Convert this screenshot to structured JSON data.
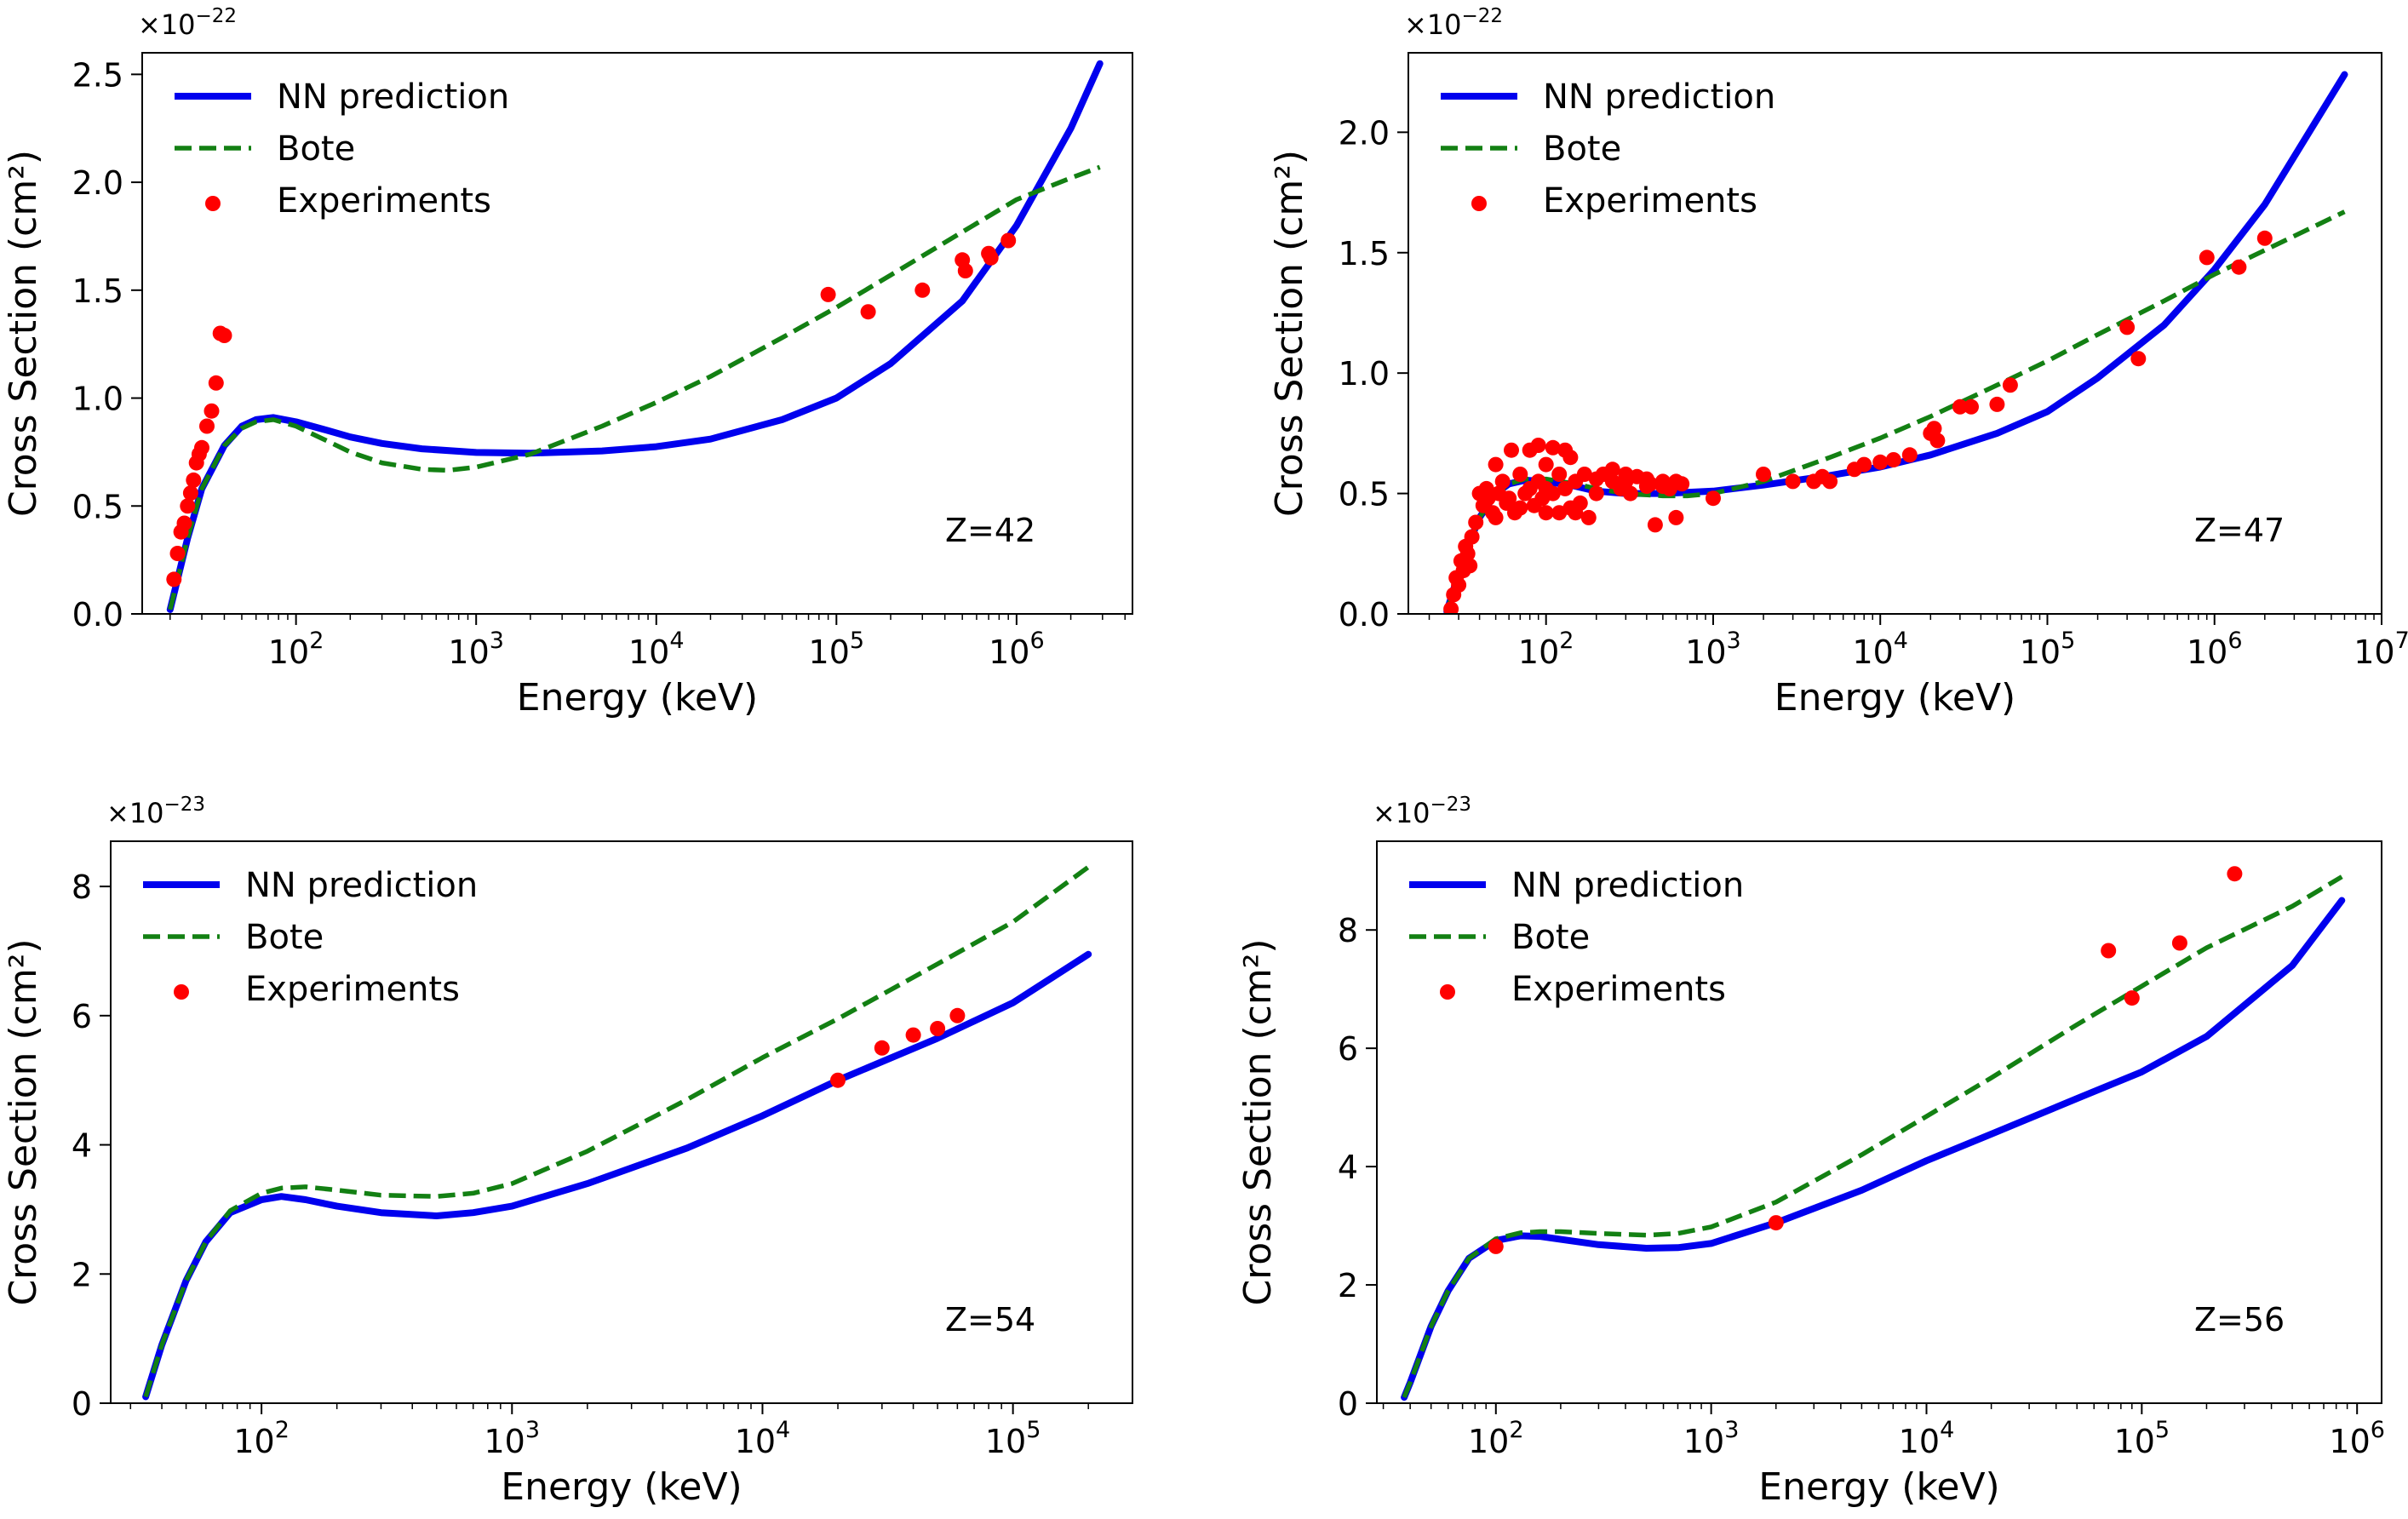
{
  "chart_data": [
    {
      "type": "line",
      "panel": "top-left",
      "title": "",
      "xlabel": "Energy (keV)",
      "ylabel": "Cross Section (cm²)",
      "xscale": "log",
      "xlim": [
        14,
        4400000
      ],
      "ylim": [
        0,
        2.6
      ],
      "x_ticks": [
        100,
        1000,
        10000,
        100000,
        1000000
      ],
      "x_tick_labels": [
        {
          "base": "10",
          "exp": "2"
        },
        {
          "base": "10",
          "exp": "3"
        },
        {
          "base": "10",
          "exp": "4"
        },
        {
          "base": "10",
          "exp": "5"
        },
        {
          "base": "10",
          "exp": "6"
        }
      ],
      "y_ticks": [
        0,
        0.5,
        1.0,
        1.5,
        2.0,
        2.5
      ],
      "y_tick_labels": [
        "0.0",
        "0.5",
        "1.0",
        "1.5",
        "2.0",
        "2.5"
      ],
      "offset_text": {
        "prefix": "×10",
        "exp": "−22"
      },
      "annotation": "Z=42",
      "legend": {
        "position": "top-left",
        "entries": [
          "NN prediction",
          "Bote",
          "Experiments"
        ]
      },
      "series": [
        {
          "name": "NN prediction",
          "style": "solid",
          "color": "#0000ee",
          "x": [
            20,
            25,
            30,
            40,
            50,
            60,
            75,
            100,
            150,
            200,
            300,
            500,
            1000,
            2000,
            5000,
            10000,
            20000,
            50000,
            100000,
            200000,
            500000,
            1000000,
            2000000,
            2900000
          ],
          "y": [
            0.02,
            0.35,
            0.58,
            0.78,
            0.87,
            0.9,
            0.91,
            0.89,
            0.85,
            0.82,
            0.79,
            0.765,
            0.748,
            0.745,
            0.755,
            0.775,
            0.81,
            0.9,
            1.0,
            1.16,
            1.45,
            1.8,
            2.25,
            2.55
          ]
        },
        {
          "name": "Bote",
          "style": "dashed",
          "color": "#138013",
          "x": [
            20,
            25,
            30,
            40,
            50,
            60,
            75,
            100,
            150,
            200,
            300,
            500,
            700,
            1000,
            2000,
            5000,
            10000,
            20000,
            50000,
            100000,
            200000,
            500000,
            1000000,
            2000000,
            2900000
          ],
          "y": [
            0.02,
            0.35,
            0.58,
            0.78,
            0.86,
            0.89,
            0.9,
            0.87,
            0.8,
            0.75,
            0.7,
            0.67,
            0.665,
            0.68,
            0.74,
            0.87,
            0.98,
            1.1,
            1.28,
            1.42,
            1.57,
            1.77,
            1.92,
            2.02,
            2.07
          ]
        },
        {
          "name": "Experiments",
          "style": "markers",
          "color": "#ff0000",
          "x": [
            21,
            22,
            23,
            24,
            25,
            26,
            27,
            28,
            29,
            30,
            32,
            34,
            36,
            38,
            40,
            90000,
            150000,
            300000,
            500000,
            520000,
            700000,
            720000,
            900000
          ],
          "y": [
            0.16,
            0.28,
            0.38,
            0.42,
            0.5,
            0.56,
            0.62,
            0.7,
            0.74,
            0.77,
            0.87,
            0.94,
            1.07,
            1.3,
            1.29,
            1.48,
            1.4,
            1.5,
            1.64,
            1.59,
            1.67,
            1.65,
            1.73
          ]
        }
      ]
    },
    {
      "type": "line",
      "panel": "top-right",
      "title": "",
      "xlabel": "Energy (keV)",
      "ylabel": "Cross Section (cm²)",
      "xscale": "log",
      "xlim": [
        15,
        10000000
      ],
      "ylim": [
        0,
        2.33
      ],
      "x_ticks": [
        100,
        1000,
        10000,
        100000,
        1000000,
        10000000
      ],
      "x_tick_labels": [
        {
          "base": "10",
          "exp": "2"
        },
        {
          "base": "10",
          "exp": "3"
        },
        {
          "base": "10",
          "exp": "4"
        },
        {
          "base": "10",
          "exp": "5"
        },
        {
          "base": "10",
          "exp": "6"
        },
        {
          "base": "10",
          "exp": "7"
        }
      ],
      "y_ticks": [
        0,
        0.5,
        1.0,
        1.5,
        2.0
      ],
      "y_tick_labels": [
        "0.0",
        "0.5",
        "1.0",
        "1.5",
        "2.0"
      ],
      "offset_text": {
        "prefix": "×10",
        "exp": "−22"
      },
      "annotation": "Z=47",
      "legend": {
        "position": "top-left",
        "entries": [
          "NN prediction",
          "Bote",
          "Experiments"
        ]
      },
      "series": [
        {
          "name": "NN prediction",
          "style": "solid",
          "color": "#0000ee",
          "x": [
            25.5,
            30,
            35,
            40,
            50,
            60,
            75,
            100,
            150,
            200,
            300,
            500,
            700,
            1000,
            2000,
            5000,
            10000,
            20000,
            50000,
            100000,
            200000,
            500000,
            1000000,
            2000000,
            6000000
          ],
          "y": [
            0.01,
            0.17,
            0.3,
            0.4,
            0.5,
            0.54,
            0.555,
            0.55,
            0.53,
            0.51,
            0.5,
            0.5,
            0.505,
            0.51,
            0.535,
            0.575,
            0.61,
            0.66,
            0.75,
            0.84,
            0.98,
            1.2,
            1.43,
            1.7,
            2.24
          ]
        },
        {
          "name": "Bote",
          "style": "dashed",
          "color": "#138013",
          "x": [
            25.5,
            30,
            35,
            40,
            50,
            60,
            75,
            100,
            150,
            200,
            300,
            500,
            700,
            1000,
            2000,
            5000,
            10000,
            20000,
            50000,
            100000,
            200000,
            500000,
            1000000,
            2000000,
            6000000
          ],
          "y": [
            0.01,
            0.17,
            0.3,
            0.4,
            0.5,
            0.54,
            0.56,
            0.56,
            0.54,
            0.52,
            0.5,
            0.49,
            0.49,
            0.5,
            0.55,
            0.65,
            0.73,
            0.82,
            0.95,
            1.05,
            1.16,
            1.3,
            1.41,
            1.51,
            1.67
          ]
        },
        {
          "name": "Experiments",
          "style": "markers",
          "color": "#ff0000",
          "x": [
            27,
            28,
            29,
            30,
            31,
            32,
            33,
            34,
            35,
            36,
            38,
            40,
            42,
            44,
            45,
            48,
            50,
            50,
            52,
            55,
            58,
            60,
            62,
            65,
            70,
            70,
            75,
            80,
            80,
            85,
            90,
            90,
            95,
            100,
            100,
            100,
            110,
            110,
            120,
            120,
            130,
            130,
            140,
            140,
            150,
            150,
            160,
            170,
            180,
            200,
            200,
            220,
            250,
            250,
            280,
            300,
            300,
            320,
            350,
            400,
            400,
            420,
            450,
            500,
            500,
            550,
            600,
            600,
            650,
            1000,
            2000,
            3000,
            4000,
            4500,
            5000,
            7000,
            8000,
            10000,
            12000,
            15000,
            20000,
            21000,
            22000,
            30000,
            35000,
            50000,
            60000,
            300000,
            350000,
            900000,
            1400000,
            2000000
          ],
          "y": [
            0.02,
            0.08,
            0.15,
            0.12,
            0.22,
            0.18,
            0.28,
            0.25,
            0.2,
            0.32,
            0.38,
            0.5,
            0.45,
            0.52,
            0.48,
            0.42,
            0.62,
            0.4,
            0.5,
            0.55,
            0.46,
            0.48,
            0.68,
            0.42,
            0.58,
            0.44,
            0.5,
            0.68,
            0.52,
            0.45,
            0.7,
            0.55,
            0.48,
            0.62,
            0.52,
            0.42,
            0.69,
            0.5,
            0.58,
            0.42,
            0.68,
            0.52,
            0.65,
            0.44,
            0.55,
            0.42,
            0.46,
            0.58,
            0.4,
            0.5,
            0.56,
            0.58,
            0.55,
            0.6,
            0.52,
            0.58,
            0.55,
            0.5,
            0.57,
            0.53,
            0.56,
            0.54,
            0.37,
            0.55,
            0.53,
            0.52,
            0.4,
            0.55,
            0.54,
            0.48,
            0.58,
            0.55,
            0.55,
            0.57,
            0.55,
            0.6,
            0.62,
            0.63,
            0.64,
            0.66,
            0.75,
            0.77,
            0.72,
            0.86,
            0.86,
            0.87,
            0.95,
            1.19,
            1.06,
            1.48,
            1.44,
            1.56
          ]
        }
      ]
    },
    {
      "type": "line",
      "panel": "bottom-left",
      "title": "",
      "xlabel": "Energy (keV)",
      "ylabel": "Cross Section (cm²)",
      "xscale": "log",
      "xlim": [
        25,
        300000
      ],
      "ylim": [
        0,
        8.7
      ],
      "x_ticks": [
        100,
        1000,
        10000,
        100000
      ],
      "x_tick_labels": [
        {
          "base": "10",
          "exp": "2"
        },
        {
          "base": "10",
          "exp": "3"
        },
        {
          "base": "10",
          "exp": "4"
        },
        {
          "base": "10",
          "exp": "5"
        }
      ],
      "y_ticks": [
        0,
        2,
        4,
        6,
        8
      ],
      "y_tick_labels": [
        "0",
        "2",
        "4",
        "6",
        "8"
      ],
      "offset_text": {
        "prefix": "×10",
        "exp": "−23"
      },
      "annotation": "Z=54",
      "legend": {
        "position": "top-left",
        "entries": [
          "NN prediction",
          "Bote",
          "Experiments"
        ]
      },
      "series": [
        {
          "name": "NN prediction",
          "style": "solid",
          "color": "#0000ee",
          "x": [
            34.5,
            40,
            50,
            60,
            75,
            100,
            120,
            150,
            200,
            300,
            500,
            700,
            1000,
            2000,
            5000,
            10000,
            20000,
            50000,
            100000,
            200000
          ],
          "y": [
            0.1,
            0.9,
            1.9,
            2.5,
            2.95,
            3.15,
            3.2,
            3.15,
            3.05,
            2.95,
            2.9,
            2.95,
            3.05,
            3.4,
            3.95,
            4.45,
            5.0,
            5.65,
            6.2,
            6.95
          ]
        },
        {
          "name": "Bote",
          "style": "dashed",
          "color": "#138013",
          "x": [
            34.5,
            40,
            50,
            60,
            75,
            100,
            120,
            150,
            200,
            300,
            500,
            700,
            1000,
            2000,
            5000,
            10000,
            20000,
            50000,
            100000,
            200000
          ],
          "y": [
            0.1,
            0.9,
            1.9,
            2.5,
            2.98,
            3.25,
            3.33,
            3.35,
            3.3,
            3.22,
            3.2,
            3.25,
            3.4,
            3.9,
            4.7,
            5.35,
            5.95,
            6.8,
            7.45,
            8.3
          ]
        },
        {
          "name": "Experiments",
          "style": "markers",
          "color": "#ff0000",
          "x": [
            20000,
            30000,
            40000,
            50000,
            60000
          ],
          "y": [
            5.0,
            5.5,
            5.7,
            5.8,
            6.0
          ]
        }
      ]
    },
    {
      "type": "line",
      "panel": "bottom-right",
      "title": "",
      "xlabel": "Energy (keV)",
      "ylabel": "Cross Section (cm²)",
      "xscale": "log",
      "xlim": [
        28,
        1300000
      ],
      "ylim": [
        0,
        9.5
      ],
      "x_ticks": [
        100,
        1000,
        10000,
        100000,
        1000000
      ],
      "x_tick_labels": [
        {
          "base": "10",
          "exp": "2"
        },
        {
          "base": "10",
          "exp": "3"
        },
        {
          "base": "10",
          "exp": "4"
        },
        {
          "base": "10",
          "exp": "5"
        },
        {
          "base": "10",
          "exp": "6"
        }
      ],
      "y_ticks": [
        0,
        2,
        4,
        6,
        8
      ],
      "y_tick_labels": [
        "0",
        "2",
        "4",
        "6",
        "8"
      ],
      "offset_text": {
        "prefix": "×10",
        "exp": "−23"
      },
      "annotation": "Z=56",
      "legend": {
        "position": "top-left",
        "entries": [
          "NN prediction",
          "Bote",
          "Experiments"
        ]
      },
      "series": [
        {
          "name": "NN prediction",
          "style": "solid",
          "color": "#0000ee",
          "x": [
            37.5,
            40,
            50,
            60,
            75,
            100,
            130,
            160,
            200,
            300,
            500,
            700,
            1000,
            2000,
            5000,
            10000,
            20000,
            50000,
            100000,
            200000,
            500000,
            850000
          ],
          "y": [
            0.1,
            0.35,
            1.3,
            1.9,
            2.45,
            2.75,
            2.83,
            2.82,
            2.77,
            2.68,
            2.62,
            2.63,
            2.7,
            3.05,
            3.6,
            4.1,
            4.55,
            5.15,
            5.6,
            6.2,
            7.4,
            8.5
          ]
        },
        {
          "name": "Bote",
          "style": "dashed",
          "color": "#138013",
          "x": [
            37.5,
            40,
            50,
            60,
            75,
            100,
            130,
            160,
            200,
            300,
            500,
            700,
            1000,
            2000,
            5000,
            10000,
            20000,
            50000,
            100000,
            200000,
            500000,
            850000
          ],
          "y": [
            0.1,
            0.35,
            1.3,
            1.9,
            2.45,
            2.78,
            2.88,
            2.9,
            2.9,
            2.87,
            2.84,
            2.87,
            2.98,
            3.4,
            4.2,
            4.85,
            5.5,
            6.4,
            7.05,
            7.7,
            8.4,
            8.9
          ]
        },
        {
          "name": "Experiments",
          "style": "markers",
          "color": "#ff0000",
          "x": [
            100,
            2000,
            70000,
            90000,
            150000,
            270000
          ],
          "y": [
            2.65,
            3.05,
            7.65,
            6.85,
            7.78,
            8.95
          ]
        }
      ]
    }
  ]
}
